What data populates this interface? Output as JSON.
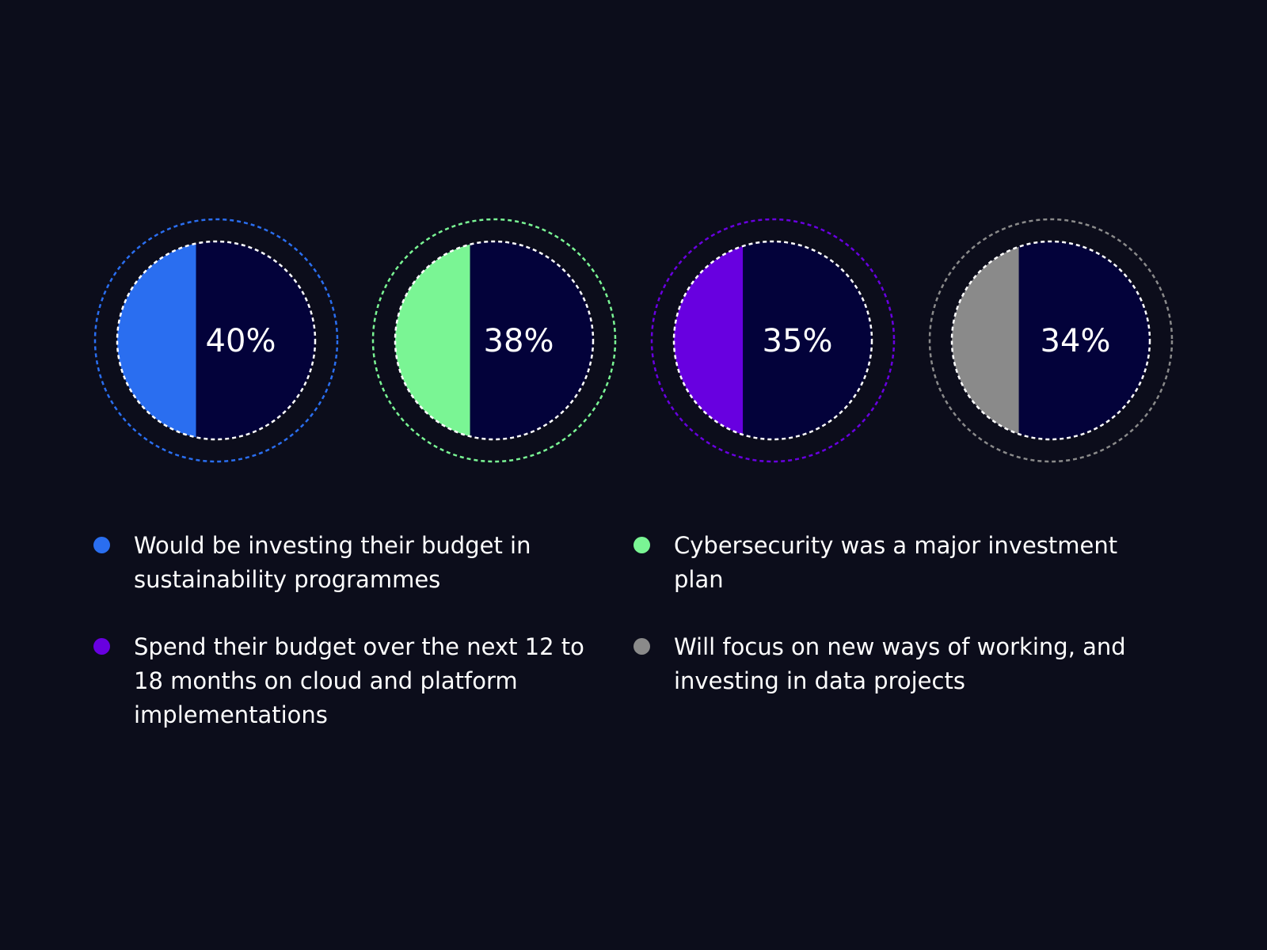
{
  "chart_data": {
    "type": "pie",
    "series": [
      {
        "value": 40,
        "label": "40%",
        "color": "#2a6ef0",
        "description": "Would be investing their budget in sustainability programmes"
      },
      {
        "value": 38,
        "label": "38%",
        "color": "#7af594",
        "description": "Cybersecurity was a major investment plan"
      },
      {
        "value": 35,
        "label": "35%",
        "color": "#6800e0",
        "description": "Spend their budget over the next 12 to 18 months on cloud and platform implementations"
      },
      {
        "value": 34,
        "label": "34%",
        "color": "#8a8a8a",
        "description": "Will focus on new ways of working, and investing in data projects"
      }
    ]
  },
  "colors": {
    "background": "#0c0d1b",
    "inner_fill": "#03023a",
    "text": "#ffffff"
  }
}
